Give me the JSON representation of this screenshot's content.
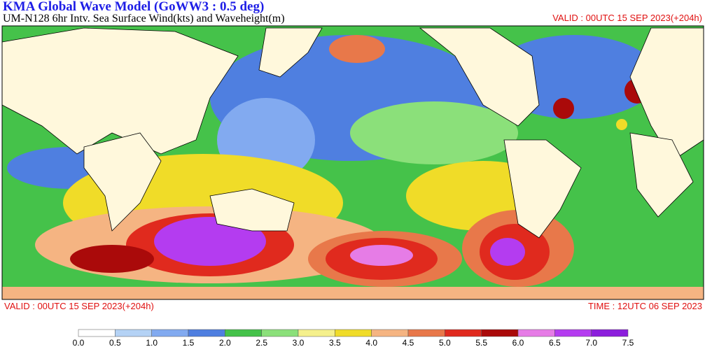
{
  "header": {
    "title": "KMA  Global Wave Model (GoWW3 : 0.5 deg)",
    "subtitle": "UM-N128  6hr Intv. Sea Surface Wind(kts) and Waveheight(m)",
    "valid_top": "VALID : 00UTC 15 SEP 2023(+204h)"
  },
  "footer": {
    "valid": "VALID : 00UTC 15 SEP 2023(+204h)",
    "time": "TIME : 12UTC 06 SEP 2023"
  },
  "colorbar": {
    "labels": [
      "0.0",
      "0.5",
      "1.0",
      "1.5",
      "2.0",
      "2.5",
      "3.0",
      "3.5",
      "4.0",
      "4.5",
      "5.0",
      "5.5",
      "6.0",
      "6.5",
      "7.0",
      "7.5"
    ],
    "colors": [
      "#ffffff",
      "#b4d2f5",
      "#82aaf0",
      "#4f7fe0",
      "#45c24a",
      "#8be07a",
      "#f5f08c",
      "#f0dc28",
      "#f5b482",
      "#e8784a",
      "#e02a1e",
      "#aa0a0a",
      "#e67ce6",
      "#b43cf0",
      "#8c1edc"
    ]
  }
}
